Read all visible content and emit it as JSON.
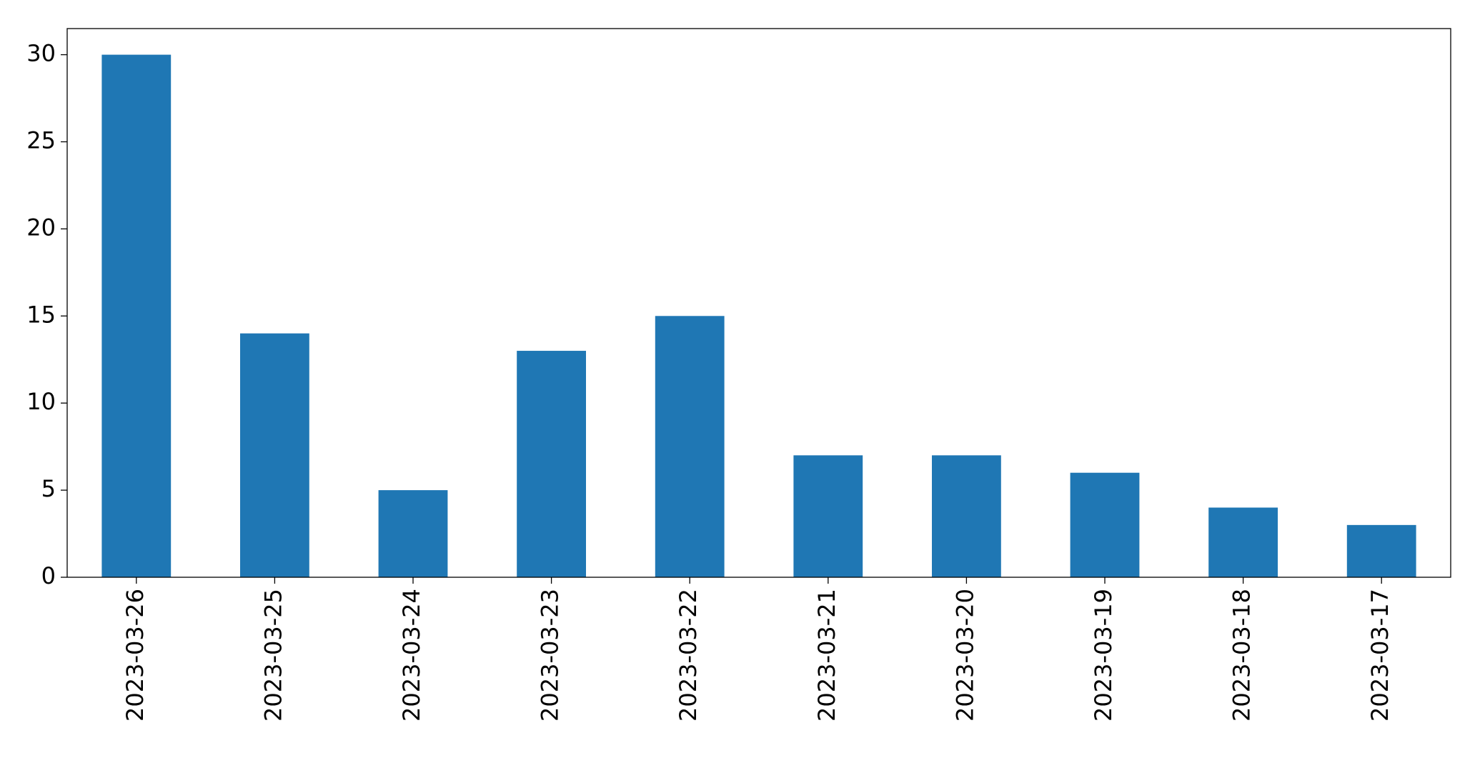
{
  "chart_data": {
    "type": "bar",
    "categories": [
      "2023-03-26",
      "2023-03-25",
      "2023-03-24",
      "2023-03-23",
      "2023-03-22",
      "2023-03-21",
      "2023-03-20",
      "2023-03-19",
      "2023-03-18",
      "2023-03-17"
    ],
    "values": [
      30,
      14,
      5,
      13,
      15,
      7,
      7,
      6,
      4,
      3
    ],
    "color": "#1f77b4",
    "ylim": [
      0,
      31.5
    ],
    "yticks": [
      0,
      5,
      10,
      15,
      20,
      25,
      30
    ],
    "grid": false
  }
}
